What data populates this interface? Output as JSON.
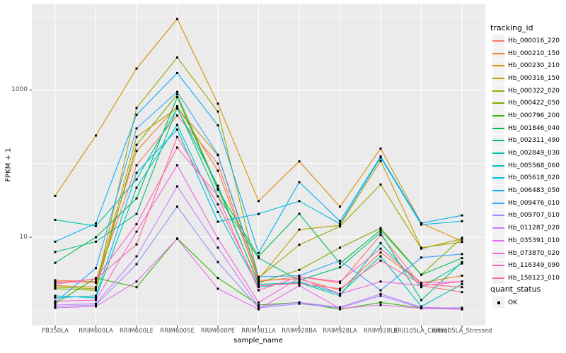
{
  "chart_data": {
    "type": "line",
    "title": "",
    "xlabel": "sample_name",
    "ylabel": "FPKM + 1",
    "y_scale": "log10",
    "grid": true,
    "legend_position": "right",
    "panel_bg": "#EBEBEB",
    "grid_color": "#FFFFFF",
    "tick_color": "#333333",
    "point_color": "#000000",
    "y_ticks": [
      {
        "label": "1000",
        "value": 1000
      },
      {
        "label": "10",
        "value": 10
      }
    ],
    "minor_gridline_values": [
      10000,
      100,
      1
    ],
    "ylim": [
      0.65,
      15000
    ],
    "categories": [
      "PB350LA",
      "RRIM600LA",
      "RRIM600LE",
      "RRIM600SE",
      "RRIM600PE",
      "RRIM901LA",
      "RRIM928BA",
      "RRIM928LA",
      "RRIM928LE",
      "RRII105LA_Control",
      "RRII105LA_Stressed"
    ],
    "series": [
      {
        "name": "Hb_000016_220",
        "color": "#F8766D",
        "values": [
          2.5,
          2.4,
          95,
          450,
          100,
          2.5,
          2.9,
          2.4,
          10.7,
          2.2,
          1.8
        ]
      },
      {
        "name": "Hb_000210_150",
        "color": "#EA8331",
        "values": [
          2.6,
          2.5,
          148,
          600,
          80,
          2.6,
          2.7,
          1.9,
          6.2,
          2.4,
          3.0
        ]
      },
      {
        "name": "Hb_000230_210",
        "color": "#D89000",
        "values": [
          36.5,
          240,
          1950,
          9200,
          650,
          31,
          107,
          26,
          160,
          15.5,
          8.8
        ]
      },
      {
        "name": "Hb_000316_150",
        "color": "#C09B00",
        "values": [
          2.2,
          2.1,
          230,
          570,
          130,
          2.7,
          12.7,
          14.5,
          109,
          7.2,
          8.6
        ]
      },
      {
        "name": "Hb_000322_020",
        "color": "#A3A500",
        "values": [
          2.1,
          2.0,
          570,
          2760,
          510,
          2.8,
          7.9,
          14.0,
          52,
          7.0,
          9.5
        ]
      },
      {
        "name": "Hb_000422_050",
        "color": "#7CAE00",
        "values": [
          2.0,
          1.9,
          180,
          870,
          46,
          2.4,
          3.6,
          7.2,
          13.3,
          3.1,
          9.8
        ]
      },
      {
        "name": "Hb_000796_200",
        "color": "#39B600",
        "values": [
          1.25,
          2.8,
          2.1,
          9.6,
          2.8,
          1.2,
          1.3,
          1.05,
          1.3,
          1.1,
          1.05
        ]
      },
      {
        "name": "Hb_001846_040",
        "color": "#00BB4E",
        "values": [
          4.5,
          10.0,
          33.7,
          800,
          44,
          5.5,
          20.8,
          4.4,
          12.5,
          3.1,
          5.2
        ]
      },
      {
        "name": "Hb_002311_490",
        "color": "#00BF7D",
        "values": [
          6.3,
          8.7,
          20.7,
          580,
          36,
          5.2,
          2.6,
          3.9,
          11.6,
          1.4,
          4.6
        ]
      },
      {
        "name": "Hb_002849_030",
        "color": "#00C1A3",
        "values": [
          17.2,
          14.2,
          61,
          560,
          50,
          2.3,
          2.4,
          1.6,
          8.3,
          2.1,
          4.4
        ]
      },
      {
        "name": "Hb_005568_060",
        "color": "#00BFC4",
        "values": [
          1.6,
          1.5,
          47,
          335,
          22,
          2.1,
          2.5,
          1.7,
          5.5,
          1.15,
          2.3
        ]
      },
      {
        "name": "Hb_005618_020",
        "color": "#00BAE0",
        "values": [
          1.5,
          1.6,
          75,
          290,
          16.2,
          20.7,
          31,
          15.2,
          121,
          14.8,
          16.5
        ]
      },
      {
        "name": "Hb_006483_050",
        "color": "#00B0F6",
        "values": [
          8.7,
          15.4,
          460,
          1700,
          330,
          6.1,
          56,
          16.5,
          125,
          15.5,
          19.8
        ]
      },
      {
        "name": "Hb_009476_010",
        "color": "#35A2FF",
        "values": [
          1.3,
          3.8,
          300,
          940,
          132,
          2.9,
          3.0,
          4.8,
          1.9,
          5.3,
          5.9
        ]
      },
      {
        "name": "Hb_009707_010",
        "color": "#9590FF",
        "values": [
          1.15,
          1.2,
          4.3,
          26,
          4.6,
          1.1,
          1.25,
          1.1,
          1.6,
          1.1,
          1.1
        ]
      },
      {
        "name": "Hb_011287_020",
        "color": "#C77CFF",
        "values": [
          1.2,
          1.25,
          5.5,
          49,
          7.2,
          1.15,
          1.3,
          1.12,
          1.7,
          1.12,
          1.08
        ]
      },
      {
        "name": "Hb_035391_010",
        "color": "#E76BF3",
        "values": [
          1.1,
          1.15,
          2.5,
          9.5,
          2.0,
          1.05,
          2.2,
          1.08,
          1.2,
          1.08,
          1.05
        ]
      },
      {
        "name": "Hb_073870_020",
        "color": "#FA62DB",
        "values": [
          1.35,
          1.4,
          11.9,
          95,
          9.6,
          1.3,
          2.8,
          1.7,
          2.5,
          2.2,
          2.5
        ]
      },
      {
        "name": "Hb_116349_090",
        "color": "#FF62BC",
        "values": [
          2.3,
          2.75,
          15,
          165,
          36,
          1.9,
          2.9,
          2.5,
          7.0,
          2.4,
          2.5
        ]
      },
      {
        "name": "Hb_158123_010",
        "color": "#FF6A98",
        "values": [
          2.4,
          2.7,
          8.0,
          230,
          28,
          2.2,
          2.35,
          2.0,
          4.8,
          2.3,
          2.1
        ]
      }
    ],
    "legends": {
      "tracking": {
        "title": "tracking_id"
      },
      "quant": {
        "title": "quant_status",
        "items": [
          "OK"
        ]
      }
    }
  }
}
